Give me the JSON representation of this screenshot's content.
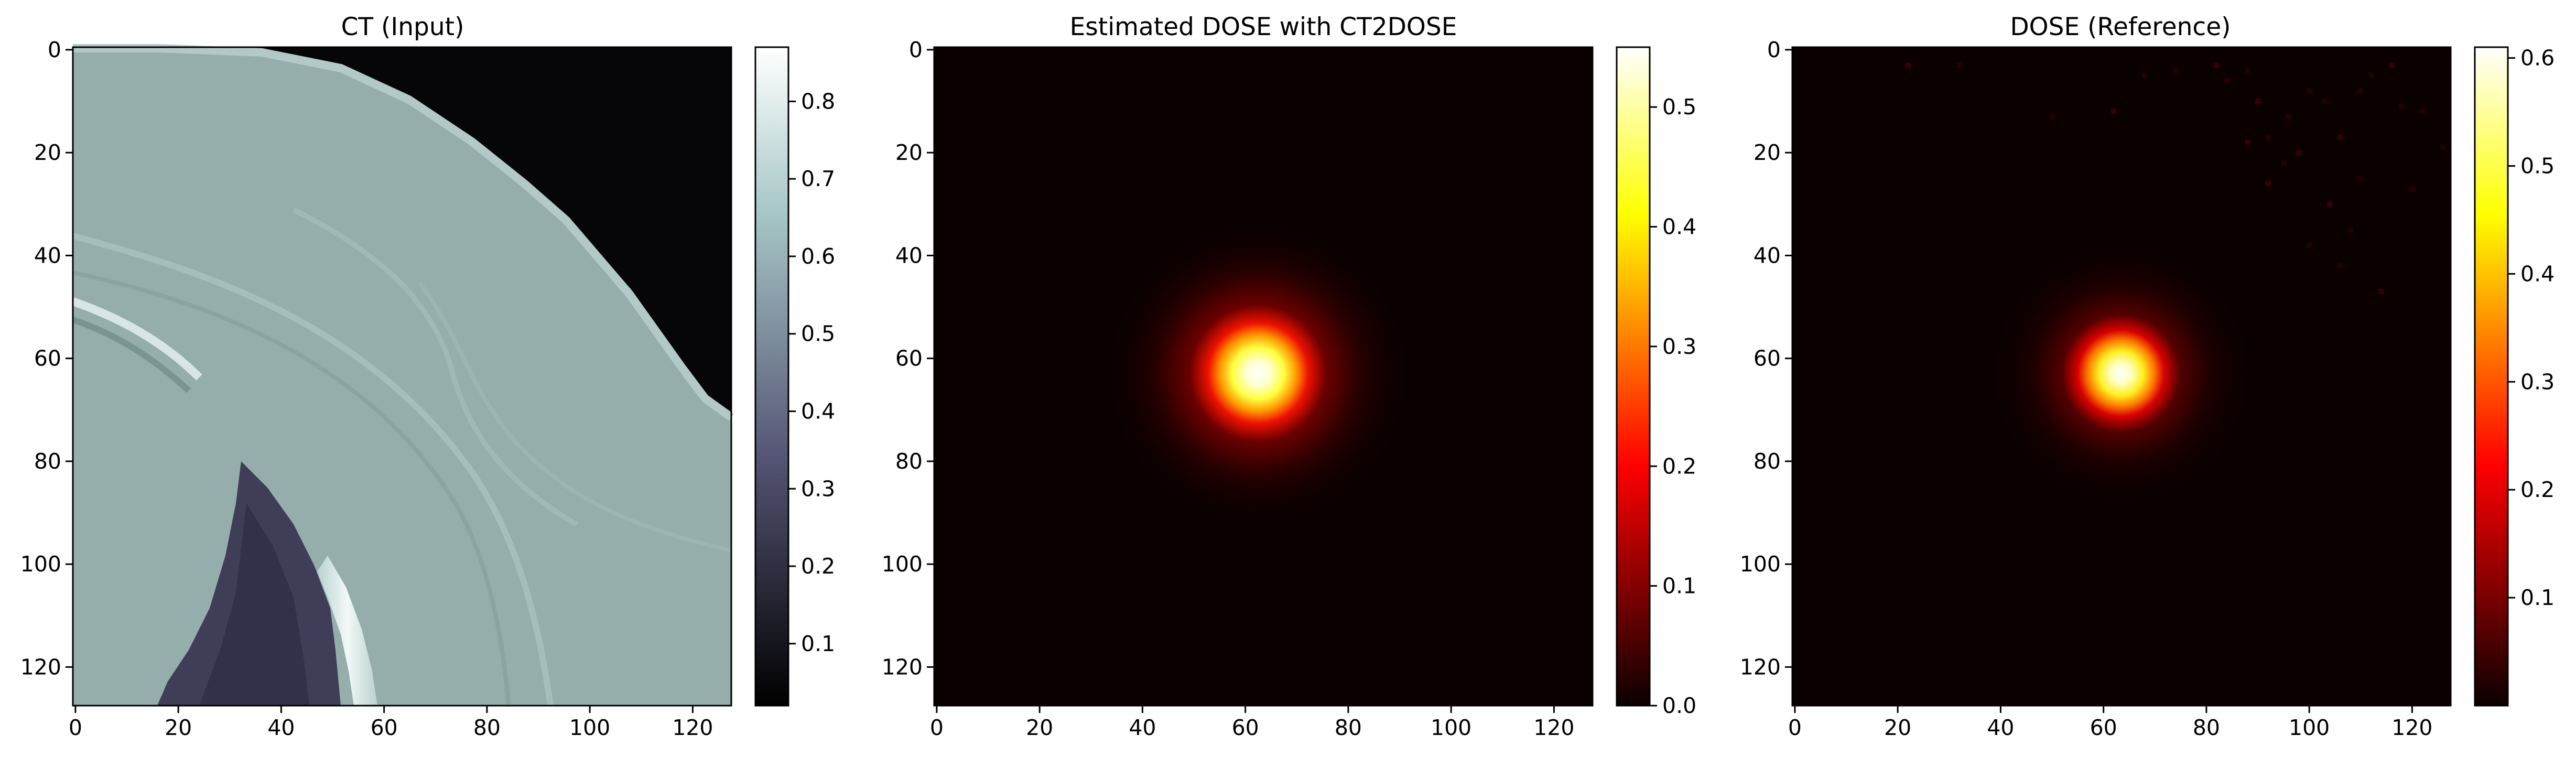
{
  "chart_data": [
    {
      "type": "heatmap",
      "title": "CT (Input)",
      "colormap": "bone",
      "x_ticks": [
        "0",
        "20",
        "40",
        "60",
        "80",
        "100",
        "120"
      ],
      "y_ticks": [
        "0",
        "20",
        "40",
        "60",
        "80",
        "100",
        "120"
      ],
      "xlim": [
        0,
        127
      ],
      "ylim": [
        127,
        0
      ],
      "colorbar": {
        "ticks": [
          "0.1",
          "0.2",
          "0.3",
          "0.4",
          "0.5",
          "0.6",
          "0.7",
          "0.8"
        ],
        "range": [
          0.02,
          0.87
        ]
      },
      "features": [
        {
          "name": "body tissue",
          "value": 0.58
        },
        {
          "name": "air outside body (upper right)",
          "value": 0.03
        },
        {
          "name": "skin boundary arc",
          "value": 0.68
        },
        {
          "name": "lung air pocket (bottom, x 20-58, y 80-127)",
          "value": 0.24
        },
        {
          "name": "rib bone (bright band near x 50-60)",
          "value": 0.85
        }
      ]
    },
    {
      "type": "heatmap",
      "title": "Estimated DOSE with CT2DOSE",
      "colormap": "hot",
      "x_ticks": [
        "0",
        "20",
        "40",
        "60",
        "80",
        "100",
        "120"
      ],
      "y_ticks": [
        "0",
        "20",
        "40",
        "60",
        "80",
        "100",
        "120"
      ],
      "xlim": [
        0,
        127
      ],
      "ylim": [
        127,
        0
      ],
      "colorbar": {
        "ticks": [
          "0.0",
          "0.1",
          "0.2",
          "0.3",
          "0.4",
          "0.5"
        ],
        "range": [
          0.0,
          0.55
        ]
      },
      "features": [
        {
          "name": "dose hotspot",
          "center": [
            63,
            63
          ],
          "peak": 0.55
        }
      ]
    },
    {
      "type": "heatmap",
      "title": "DOSE (Reference)",
      "colormap": "hot",
      "x_ticks": [
        "0",
        "20",
        "40",
        "60",
        "80",
        "100",
        "120"
      ],
      "y_ticks": [
        "0",
        "20",
        "40",
        "60",
        "80",
        "100",
        "120"
      ],
      "xlim": [
        0,
        127
      ],
      "ylim": [
        127,
        0
      ],
      "colorbar": {
        "ticks": [
          "0.1",
          "0.2",
          "0.3",
          "0.4",
          "0.5",
          "0.6"
        ],
        "range": [
          0.0,
          0.61
        ]
      },
      "features": [
        {
          "name": "dose hotspot",
          "center": [
            63,
            63
          ],
          "peak": 0.61
        },
        {
          "name": "scattered noise points (upper right)",
          "peak": 0.05
        }
      ]
    }
  ]
}
